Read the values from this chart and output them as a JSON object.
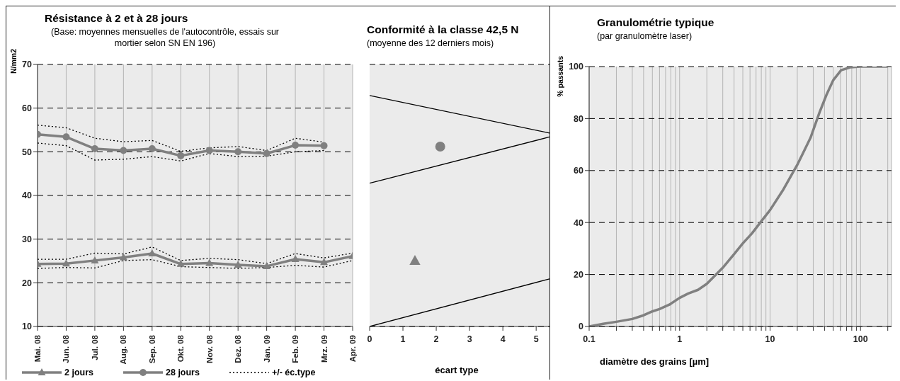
{
  "chart_data": [
    {
      "type": "line",
      "title": "Résistance à 2 et à 28 jours",
      "subtitle": "(Base: moyennes mensuelles de l'autocontrôle, essais sur mortier selon SN EN 196)",
      "ylabel": "N/mm2",
      "categories": [
        "Mai. 08",
        "Jun. 08",
        "Jul. 08",
        "Aug. 08",
        "Sep. 08",
        "Okt. 08",
        "Nov. 08",
        "Dez. 08",
        "Jan. 09",
        "Feb. 09",
        "Mrz. 09",
        "Apr. 09"
      ],
      "ylim": [
        10,
        70
      ],
      "yticks": [
        10,
        20,
        30,
        40,
        50,
        60,
        70
      ],
      "grid": true,
      "legend": "bottom",
      "series": [
        {
          "name": "2 jours",
          "color": "#808080",
          "marker": "triangle",
          "values": [
            24.3,
            24.4,
            25.1,
            25.8,
            26.7,
            24.3,
            24.5,
            24.1,
            23.8,
            25.4,
            24.7,
            26.1
          ]
        },
        {
          "name": "28 jours",
          "color": "#808080",
          "marker": "circle",
          "values": [
            54.0,
            53.4,
            50.7,
            50.3,
            50.7,
            49.1,
            50.3,
            50.0,
            49.6,
            51.5,
            51.4,
            null
          ]
        },
        {
          "name": "+/- éc.type",
          "color": "#000000",
          "marker": "none",
          "line_style": "dotted",
          "values": [
            25.4,
            25.4,
            26.8,
            26.6,
            28.2,
            25.1,
            25.6,
            25.3,
            24.4,
            26.7,
            25.7,
            26.8
          ]
        },
        {
          "color": "#000000",
          "marker": "none",
          "line_style": "dotted",
          "values": [
            23.3,
            23.5,
            23.4,
            25.1,
            25.3,
            23.7,
            23.5,
            23.3,
            23.5,
            24.0,
            23.6,
            25.1
          ]
        },
        {
          "color": "#000000",
          "marker": "none",
          "line_style": "dotted",
          "values": [
            56.1,
            55.5,
            53.1,
            52.3,
            52.6,
            50.1,
            50.9,
            51.2,
            50.3,
            53.1,
            52.2,
            null
          ]
        },
        {
          "color": "#000000",
          "marker": "none",
          "line_style": "dotted",
          "values": [
            52.0,
            51.4,
            48.1,
            48.3,
            48.9,
            47.9,
            49.6,
            48.9,
            49.0,
            50.0,
            50.3,
            null
          ]
        }
      ]
    },
    {
      "type": "line",
      "title": "Conformité à la classe 42,5 N",
      "subtitle": "(moyenne des 12 derniers mois)",
      "xlabel": "écart type",
      "xlim": [
        0,
        5.4
      ],
      "xticks": [
        0,
        1,
        2,
        3,
        4,
        5
      ],
      "ylim": [
        10,
        70
      ],
      "yticks": [
        10,
        20,
        30,
        40,
        50,
        60,
        70
      ],
      "tick_labels": "x",
      "grid": "y",
      "series": [
        {
          "color": "#000000",
          "marker": "none",
          "x": [
            0,
            5.4
          ],
          "values": [
            62.9,
            54.3
          ]
        },
        {
          "color": "#000000",
          "marker": "none",
          "x": [
            0,
            5.4
          ],
          "values": [
            42.8,
            53.4
          ]
        },
        {
          "color": "#000000",
          "marker": "none",
          "x": [
            0,
            5.4
          ],
          "values": [
            10,
            20.9
          ]
        },
        {
          "type": "scatter",
          "color": "#808080",
          "marker": "circle",
          "x": [
            2.12
          ],
          "values": [
            51.2
          ]
        },
        {
          "type": "scatter",
          "color": "#808080",
          "marker": "triangle",
          "x": [
            1.36
          ],
          "values": [
            25.0
          ]
        }
      ]
    },
    {
      "type": "line",
      "title": "Granulométrie typique",
      "subtitle": "(par granulomètre laser)",
      "xlabel": "diamètre des grains [µm]",
      "ylabel": "% passants",
      "log": "x",
      "xlim": [
        0.1,
        220
      ],
      "xticks": [
        0.1,
        {
          "value": 0.2,
          "label": null
        },
        {
          "value": 0.3,
          "label": null
        },
        {
          "value": 0.4,
          "label": null
        },
        {
          "value": 0.5,
          "label": null
        },
        {
          "value": 0.6,
          "label": null
        },
        {
          "value": 0.7,
          "label": null
        },
        {
          "value": 0.8,
          "label": null
        },
        {
          "value": 0.9,
          "label": null
        },
        1,
        {
          "value": 2,
          "label": null
        },
        {
          "value": 3,
          "label": null
        },
        {
          "value": 4,
          "label": null
        },
        {
          "value": 5,
          "label": null
        },
        {
          "value": 6,
          "label": null
        },
        {
          "value": 7,
          "label": null
        },
        {
          "value": 8,
          "label": null
        },
        {
          "value": 9,
          "label": null
        },
        10,
        {
          "value": 20,
          "label": null
        },
        {
          "value": 30,
          "label": null
        },
        {
          "value": 40,
          "label": null
        },
        {
          "value": 50,
          "label": null
        },
        {
          "value": 60,
          "label": null
        },
        {
          "value": 70,
          "label": null
        },
        {
          "value": 80,
          "label": null
        },
        {
          "value": 90,
          "label": null
        },
        100,
        {
          "value": 200,
          "label": null
        }
      ],
      "ylim": [
        0,
        100
      ],
      "yticks": [
        0,
        20,
        40,
        60,
        80,
        100
      ],
      "grid": true,
      "series": [
        {
          "color": "#808080",
          "x": [
            0.1,
            0.143,
            0.2,
            0.3,
            0.4,
            0.5,
            0.6,
            0.77,
            1.0,
            1.25,
            1.6,
            2.0,
            3.0,
            4.0,
            5.0,
            6.3,
            8.0,
            10,
            13.8,
            20,
            28,
            35,
            42,
            50,
            61,
            77,
            100,
            200
          ],
          "values": [
            0,
            1.0,
            1.8,
            2.9,
            4.3,
            5.8,
            6.7,
            8.4,
            11.0,
            12.7,
            14.1,
            16.4,
            22.6,
            27.8,
            32.0,
            35.8,
            40.5,
            44.8,
            52.3,
            62.2,
            72.6,
            82.1,
            89.1,
            94.8,
            98.6,
            99.7,
            100,
            100
          ]
        }
      ]
    }
  ]
}
